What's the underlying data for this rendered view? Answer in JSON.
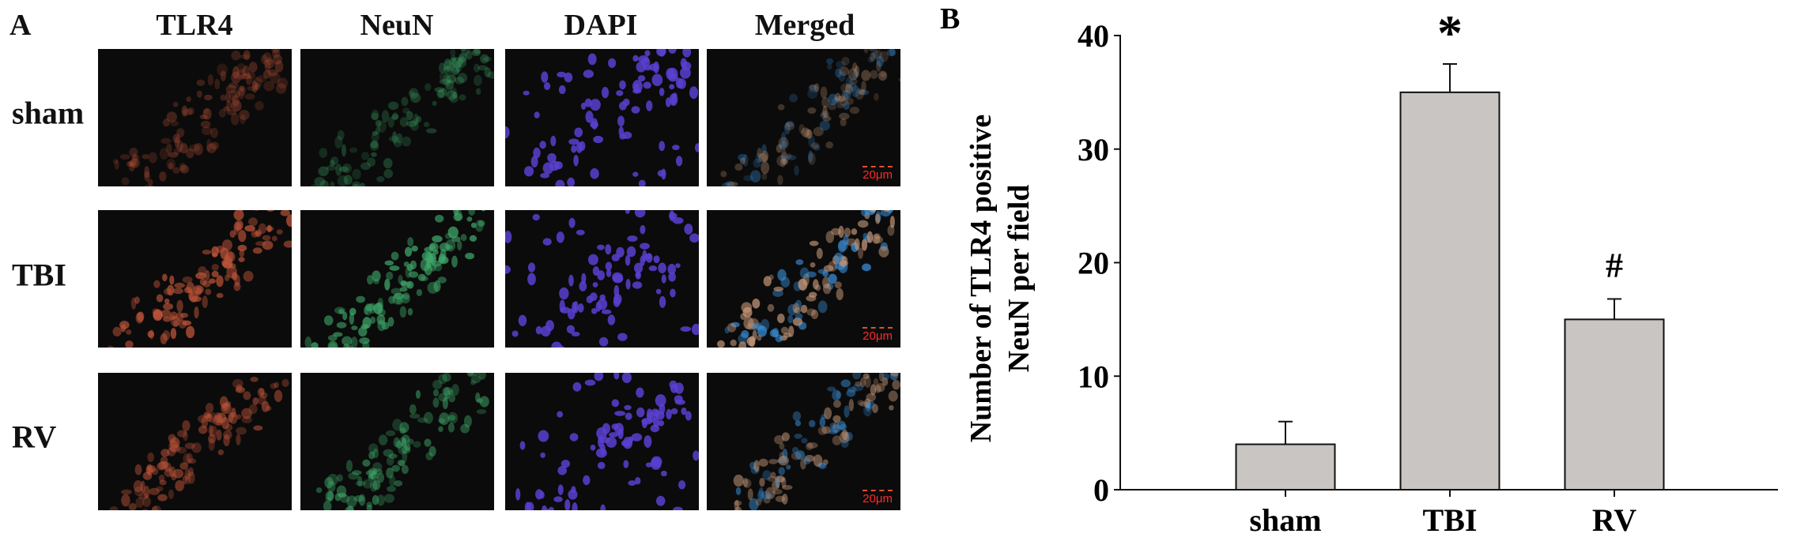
{
  "panel_a": {
    "label": "A",
    "columns": [
      "TLR4",
      "NeuN",
      "DAPI",
      "Merged"
    ],
    "rows": [
      "sham",
      "TBI",
      "RV"
    ],
    "scale_bar": "20μm",
    "channel_colors": {
      "TLR4": "#c0553a",
      "NeuN": "#3fa86a",
      "DAPI": "#5a3fd0",
      "Merged": "#c89a7a"
    }
  },
  "chart_data": {
    "panel_label": "B",
    "type": "bar",
    "categories": [
      "sham",
      "TBI",
      "RV"
    ],
    "values": [
      4,
      35,
      15
    ],
    "error_upper": [
      6,
      37.5,
      16.8
    ],
    "annotations": [
      "",
      "*",
      "#"
    ],
    "ylabel_lines": [
      "Number of TLR4 positive",
      "NeuN per field"
    ],
    "xlabel": "",
    "ylim": [
      0,
      40
    ],
    "yticks": [
      0,
      10,
      20,
      30,
      40
    ],
    "grid": false,
    "bar_color": "#c8c5c2"
  }
}
